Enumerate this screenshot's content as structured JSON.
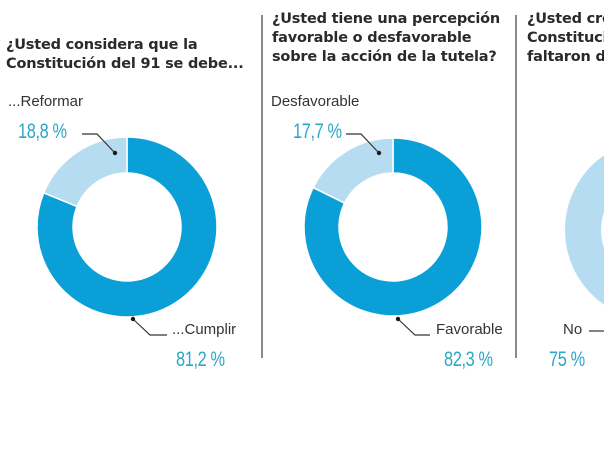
{
  "colors": {
    "primary": "#0b9fd8",
    "secondary": "#b5dcf0",
    "percent_text": "#2aa7c9",
    "leader": "#333333"
  },
  "chart_data": [
    {
      "type": "pie",
      "donut": true,
      "title": "¿Usted considera que la Constitución del 91 se debe...",
      "title_lines": [
        "¿Usted considera que la",
        "Constitución del 91 se debe..."
      ],
      "slices": [
        {
          "label": "...Cumplir",
          "value": 81.2,
          "display": "81,2 %"
        },
        {
          "label": "...Reformar",
          "value": 18.8,
          "display": "18,8 %"
        }
      ]
    },
    {
      "type": "pie",
      "donut": true,
      "title": "¿Usted tiene una percepción favorable o desfavorable sobre la acción de la tutela?",
      "title_lines": [
        "¿Usted tiene una percepción",
        "favorable o desfavorable",
        "sobre la acción de la tutela?"
      ],
      "slices": [
        {
          "label": "Favorable",
          "value": 82.3,
          "display": "82,3 %"
        },
        {
          "label": "Desfavorable",
          "value": 17.7,
          "display": "17,7 %"
        }
      ]
    },
    {
      "type": "pie",
      "donut": true,
      "title": "¿Usted cre... Constituci... faltaron d...",
      "title_lines": [
        "¿Usted cre",
        "Constituci",
        "faltaron d"
      ],
      "slices": [
        {
          "label": "No",
          "value": 75,
          "display": "75 %"
        }
      ]
    }
  ]
}
